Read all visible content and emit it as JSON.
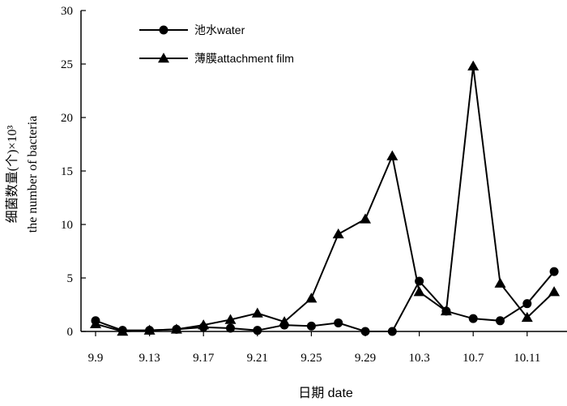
{
  "chart_data": {
    "type": "line",
    "x_tick_labels": [
      "9.9",
      "9.13",
      "9.17",
      "9.21",
      "9.25",
      "9.29",
      "10.3",
      "10.7",
      "10.11"
    ],
    "x": [
      "9.9",
      "9.11",
      "9.13",
      "9.15",
      "9.17",
      "9.19",
      "9.21",
      "9.23",
      "9.25",
      "9.27",
      "9.29",
      "10.1",
      "10.3",
      "10.5",
      "10.7",
      "10.9",
      "10.11",
      "10.13"
    ],
    "xlabel": "日期 date",
    "ylabel_line1": "细菌数量(个)×10³",
    "ylabel_line2": "the number of bacteria",
    "ylim": [
      0,
      30
    ],
    "yticks": [
      0,
      5,
      10,
      15,
      20,
      25,
      30
    ],
    "legend_position": "top-left",
    "series": [
      {
        "name": "池水water",
        "marker": "circle",
        "values": [
          1.0,
          0.1,
          0.1,
          0.2,
          0.4,
          0.3,
          0.1,
          0.6,
          0.5,
          0.8,
          0.0,
          0.0,
          4.7,
          1.9,
          1.2,
          1.0,
          2.6,
          5.6
        ]
      },
      {
        "name": "薄膜attachment film",
        "marker": "triangle",
        "values": [
          0.7,
          0.0,
          0.1,
          0.2,
          0.6,
          1.1,
          1.7,
          0.9,
          3.1,
          9.1,
          10.5,
          16.4,
          3.7,
          1.9,
          24.8,
          4.5,
          1.3,
          3.7
        ]
      }
    ]
  }
}
